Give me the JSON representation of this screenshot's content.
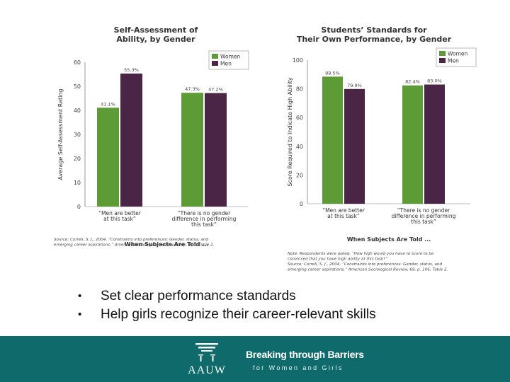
{
  "chart_data": [
    {
      "type": "bar",
      "title_lines": [
        "Self-Assessment of",
        "Ability, by Gender"
      ],
      "ylabel": "Average Self-Assessment Rating",
      "xlabel": "When Subjects Are Told ...",
      "ylim": [
        0,
        60
      ],
      "yticks": [
        0,
        10,
        20,
        30,
        40,
        50,
        60
      ],
      "grid": false,
      "legend": "top-right",
      "categories": [
        [
          "“Men are better",
          "at this task”"
        ],
        [
          "“There is no gender",
          "difference in performing",
          "this task”"
        ]
      ],
      "series": [
        {
          "name": "Women",
          "color": "#5c9b35",
          "values": [
            41.1,
            47.3
          ],
          "labels": [
            "41.1%",
            "47.3%"
          ]
        },
        {
          "name": "Men",
          "color": "#4a2545",
          "values": [
            55.3,
            47.2
          ],
          "labels": [
            "55.3%",
            "47.2%"
          ]
        }
      ],
      "note_lines": [
        "Source: Correll, S. J., 2004, “Constraints into preferences: Gender, status, and",
        "emerging career aspirations,” American Sociological Review, 69, p. 107, Table 2."
      ]
    },
    {
      "type": "bar",
      "title_lines": [
        "Students’ Standards for",
        "Their Own Performance, by Gender"
      ],
      "ylabel": "Score Required to Indicate High Ability",
      "xlabel": "When Subjects Are Told ...",
      "ylim": [
        0,
        100
      ],
      "yticks": [
        0,
        20,
        40,
        60,
        80,
        100
      ],
      "grid": false,
      "legend": "top-right",
      "categories": [
        [
          "“Men are better",
          "at this task”"
        ],
        [
          "“There is no gender",
          "difference in performing",
          "this task”"
        ]
      ],
      "series": [
        {
          "name": "Women",
          "color": "#5c9b35",
          "values": [
            88.5,
            82.4
          ],
          "labels": [
            "88.5%",
            "82.4%"
          ]
        },
        {
          "name": "Men",
          "color": "#4a2545",
          "values": [
            79.9,
            83.0
          ],
          "labels": [
            "79.9%",
            "83.0%"
          ]
        }
      ],
      "note_lines": [
        "Note: Respondents were asked, “How high would you have to score to be",
        "convinced that you have high ability at this task?”",
        "Source: Correll, S. J., 2004, “Constraints into preferences: Gender, status, and",
        "emerging career aspirations,” American Sociological Review, 69, p. 106, Table 2."
      ]
    }
  ],
  "bullets": [
    "Set clear performance standards",
    "Help girls recognize their career-relevant skills"
  ],
  "footer": {
    "logo_text": "AAUW",
    "tagline_main": "Breaking through Barriers",
    "tagline_sub": "for Women and Girls",
    "background_color": "#0e6a6b"
  }
}
